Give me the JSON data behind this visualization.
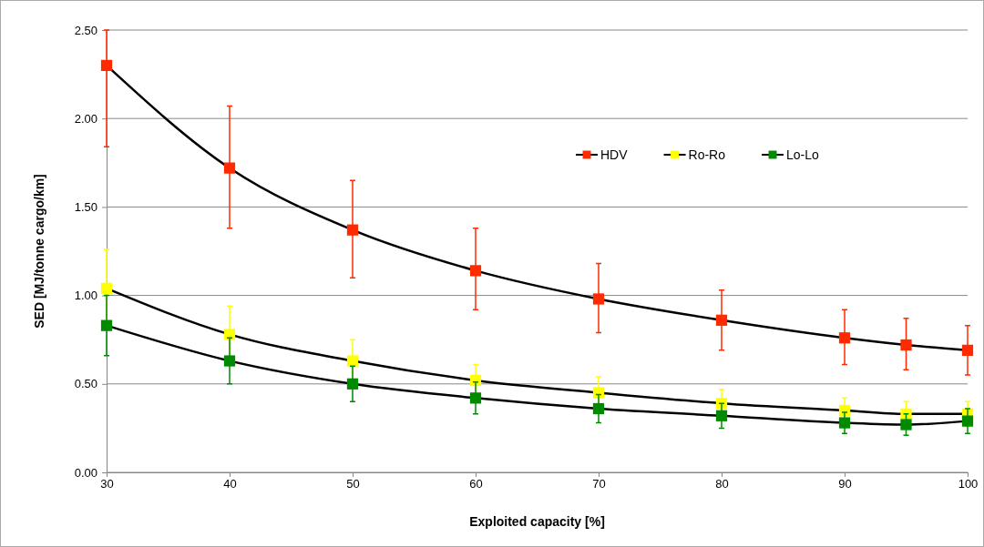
{
  "chart_data": {
    "type": "line",
    "xlabel": "Exploited capacity [%]",
    "ylabel": "SED [MJ/tonne cargo/km]",
    "x": [
      30,
      40,
      50,
      60,
      70,
      80,
      90,
      95,
      100
    ],
    "xlim": [
      30,
      100
    ],
    "xticks": [
      30,
      40,
      50,
      60,
      70,
      80,
      90,
      100
    ],
    "ylim": [
      0,
      2.5
    ],
    "yticks": [
      {
        "value": 0,
        "label": "0.00"
      },
      {
        "value": 0.5,
        "label": "0.50"
      },
      {
        "value": 1,
        "label": "1.00"
      },
      {
        "value": 1.5,
        "label": "1.50"
      },
      {
        "value": 2,
        "label": "2.00"
      },
      {
        "value": 2.5,
        "label": "2.50"
      }
    ],
    "grid": "y",
    "legend": "top right",
    "marker": "square",
    "line_style": "solid",
    "series": [
      {
        "name": "HDV",
        "color": "#ff2a00",
        "values": [
          2.3,
          1.72,
          1.37,
          1.14,
          0.98,
          0.86,
          0.76,
          0.72,
          0.69
        ],
        "errors": [
          [
            1.84,
            2.5
          ],
          [
            1.38,
            2.07
          ],
          [
            1.1,
            1.65
          ],
          [
            0.92,
            1.38
          ],
          [
            0.79,
            1.18
          ],
          [
            0.69,
            1.03
          ],
          [
            0.61,
            0.92
          ],
          [
            0.58,
            0.87
          ],
          [
            0.55,
            0.83
          ]
        ]
      },
      {
        "name": "Ro-Ro",
        "color": "#ffff00",
        "values": [
          1.04,
          0.78,
          0.63,
          0.52,
          0.45,
          0.39,
          0.35,
          0.33,
          0.33
        ],
        "errors": [
          0.22,
          0.16,
          0.12,
          0.09,
          0.09,
          0.08,
          0.07,
          0.07,
          0.07
        ]
      },
      {
        "name": "Lo-Lo",
        "color": "#008a00",
        "values": [
          0.83,
          0.63,
          0.5,
          0.42,
          0.36,
          0.32,
          0.28,
          0.27,
          0.29
        ],
        "errors": [
          0.17,
          0.13,
          0.1,
          0.09,
          0.08,
          0.07,
          0.06,
          0.06,
          0.07
        ]
      }
    ]
  }
}
